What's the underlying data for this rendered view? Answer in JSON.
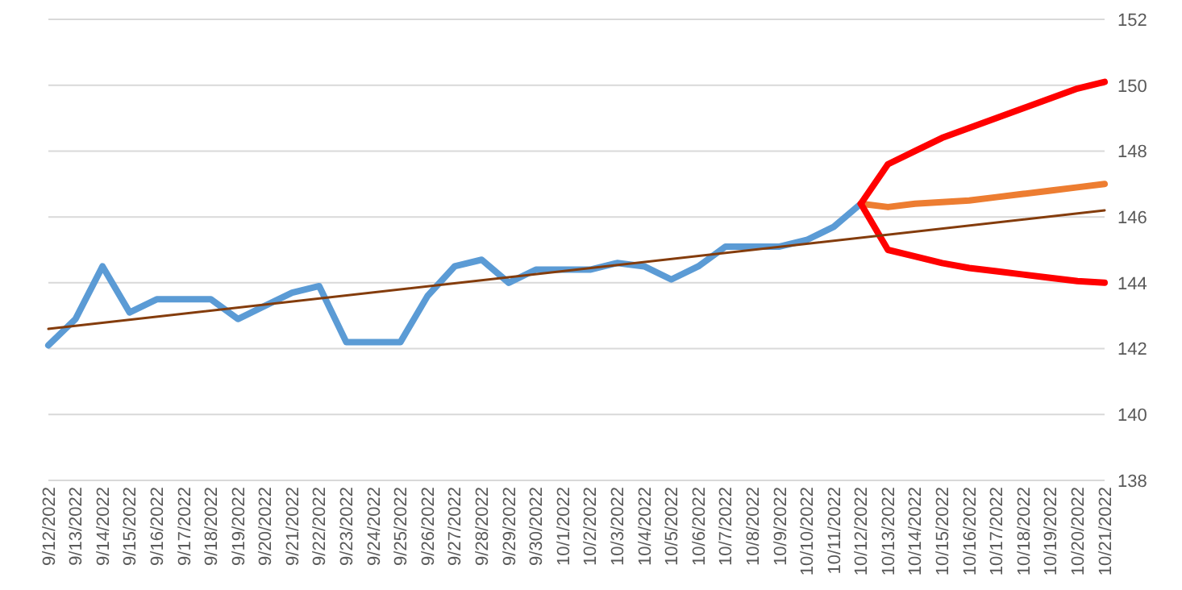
{
  "chart_data": {
    "type": "line",
    "categories": [
      "9/12/2022",
      "9/13/2022",
      "9/14/2022",
      "9/15/2022",
      "9/16/2022",
      "9/17/2022",
      "9/18/2022",
      "9/19/2022",
      "9/20/2022",
      "9/21/2022",
      "9/22/2022",
      "9/23/2022",
      "9/24/2022",
      "9/25/2022",
      "9/26/2022",
      "9/27/2022",
      "9/28/2022",
      "9/29/2022",
      "9/30/2022",
      "10/1/2022",
      "10/2/2022",
      "10/3/2022",
      "10/4/2022",
      "10/5/2022",
      "10/6/2022",
      "10/7/2022",
      "10/8/2022",
      "10/9/2022",
      "10/10/2022",
      "10/11/2022",
      "10/12/2022",
      "10/13/2022",
      "10/14/2022",
      "10/15/2022",
      "10/16/2022",
      "10/17/2022",
      "10/18/2022",
      "10/19/2022",
      "10/20/2022",
      "10/21/2022"
    ],
    "series": [
      {
        "color": "#5b9bd5",
        "values": [
          142.1,
          142.9,
          144.5,
          143.1,
          143.5,
          143.5,
          143.5,
          142.9,
          143.3,
          143.7,
          143.9,
          142.2,
          142.2,
          142.2,
          143.6,
          144.5,
          144.7,
          144.0,
          144.4,
          144.4,
          144.4,
          144.6,
          144.5,
          144.1,
          144.5,
          145.1,
          145.1,
          145.1,
          145.3,
          145.7,
          146.4,
          null,
          null,
          null,
          null,
          null,
          null,
          null,
          null,
          null
        ]
      },
      {
        "color": "#ed7d31",
        "values": [
          null,
          null,
          null,
          null,
          null,
          null,
          null,
          null,
          null,
          null,
          null,
          null,
          null,
          null,
          null,
          null,
          null,
          null,
          null,
          null,
          null,
          null,
          null,
          null,
          null,
          null,
          null,
          null,
          null,
          null,
          146.4,
          146.3,
          146.4,
          146.45,
          146.5,
          146.6,
          146.7,
          146.8,
          146.9,
          147.0
        ]
      },
      {
        "color": "#ff0000",
        "values": [
          null,
          null,
          null,
          null,
          null,
          null,
          null,
          null,
          null,
          null,
          null,
          null,
          null,
          null,
          null,
          null,
          null,
          null,
          null,
          null,
          null,
          null,
          null,
          null,
          null,
          null,
          null,
          null,
          null,
          null,
          146.4,
          147.6,
          148.0,
          148.4,
          148.7,
          149.0,
          149.3,
          149.6,
          149.9,
          150.1
        ]
      },
      {
        "color": "#ff0000",
        "values": [
          null,
          null,
          null,
          null,
          null,
          null,
          null,
          null,
          null,
          null,
          null,
          null,
          null,
          null,
          null,
          null,
          null,
          null,
          null,
          null,
          null,
          null,
          null,
          null,
          null,
          null,
          null,
          null,
          null,
          null,
          146.4,
          145.0,
          144.8,
          144.6,
          144.45,
          144.35,
          144.25,
          144.15,
          144.05,
          144.0
        ]
      },
      {
        "color": "#843c0c",
        "values": [
          142.6,
          null,
          null,
          null,
          null,
          null,
          null,
          null,
          null,
          null,
          null,
          null,
          null,
          null,
          null,
          null,
          null,
          null,
          null,
          null,
          null,
          null,
          null,
          null,
          null,
          null,
          null,
          null,
          null,
          null,
          null,
          null,
          null,
          null,
          null,
          null,
          null,
          null,
          null,
          146.2
        ]
      }
    ],
    "ylim": [
      138,
      152
    ],
    "yticks": [
      138,
      140,
      142,
      144,
      146,
      148,
      150,
      152
    ],
    "grid": "y",
    "legend": false,
    "marker": "none",
    "line_style": "solid"
  }
}
